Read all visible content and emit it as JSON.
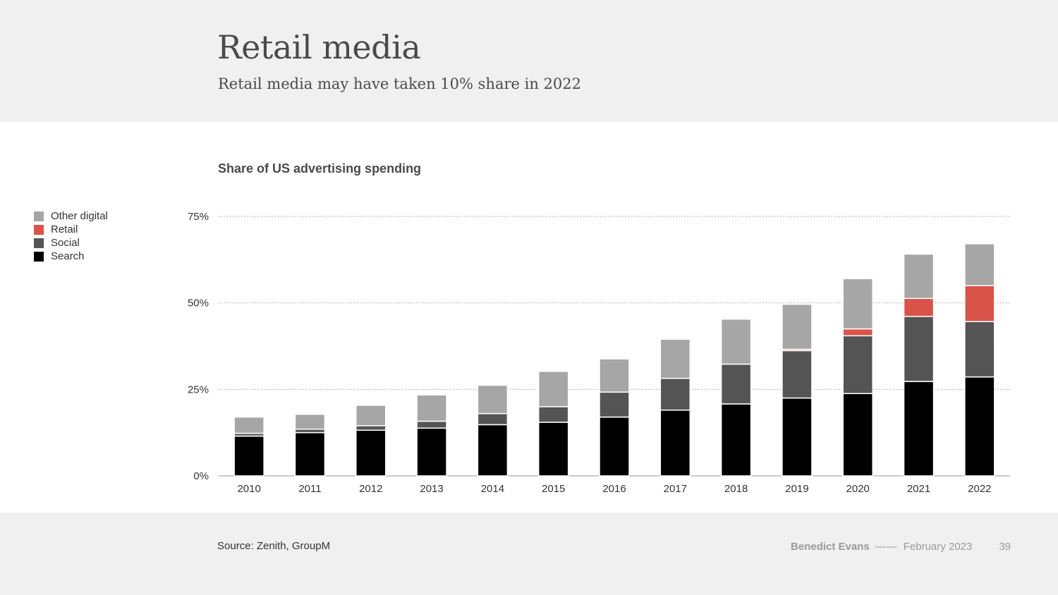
{
  "header": {
    "title": "Retail media",
    "subtitle": "Retail media may have taken 10% share in 2022"
  },
  "chart_data": {
    "type": "bar",
    "stacked": true,
    "title": "Share of US advertising spending",
    "categories": [
      "2010",
      "2011",
      "2012",
      "2013",
      "2014",
      "2015",
      "2016",
      "2017",
      "2018",
      "2019",
      "2020",
      "2021",
      "2022"
    ],
    "series": [
      {
        "name": "Search",
        "color": "#000000",
        "values": [
          11.5,
          12.5,
          13.2,
          13.8,
          14.8,
          15.5,
          17.0,
          19.0,
          20.8,
          22.5,
          23.8,
          27.3,
          28.6
        ]
      },
      {
        "name": "Social",
        "color": "#545454",
        "values": [
          0.8,
          1.0,
          1.3,
          2.0,
          3.2,
          4.5,
          7.2,
          9.2,
          11.5,
          13.7,
          16.7,
          18.8,
          16.0
        ]
      },
      {
        "name": "Retail",
        "color": "#d9534a",
        "values": [
          0,
          0,
          0,
          0,
          0,
          0,
          0,
          0,
          0,
          0.4,
          2.0,
          5.2,
          10.4
        ]
      },
      {
        "name": "Other digital",
        "color": "#a6a6a6",
        "values": [
          4.7,
          4.3,
          5.9,
          7.6,
          8.2,
          10.2,
          9.6,
          11.3,
          13.0,
          13.0,
          14.5,
          12.8,
          12.1
        ]
      }
    ],
    "legend_order": [
      "Other digital",
      "Retail",
      "Social",
      "Search"
    ],
    "yticks": [
      "0%",
      "25%",
      "50%",
      "75%"
    ],
    "ytick_values": [
      0,
      25,
      50,
      75
    ],
    "ylim": [
      0,
      75
    ],
    "grid": true,
    "legend_position": "left"
  },
  "footer": {
    "source": "Source: Zenith, GroupM",
    "author": "Benedict Evans",
    "separator": "——",
    "date": "February 2023",
    "page": "39"
  }
}
